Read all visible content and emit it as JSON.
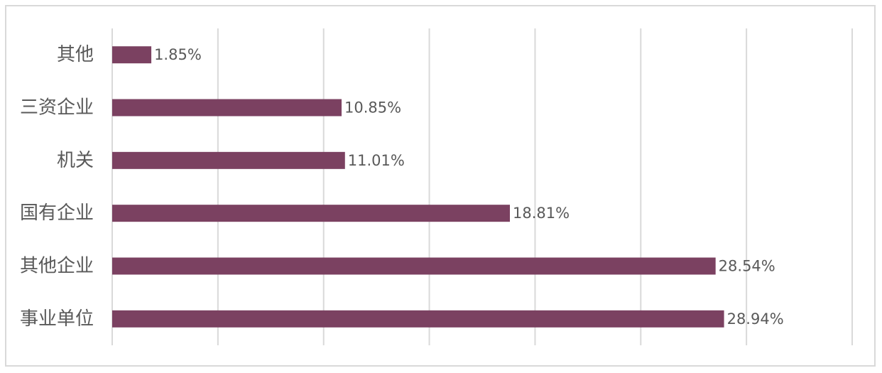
{
  "chart_data": {
    "type": "bar",
    "orientation": "horizontal",
    "categories": [
      "其他",
      "三资企业",
      "机关",
      "国有企业",
      "其他企业",
      "事业单位"
    ],
    "values": [
      1.85,
      10.85,
      11.01,
      18.81,
      28.54,
      28.94
    ],
    "value_labels": [
      "1.85%",
      "10.85%",
      "11.01%",
      "18.81%",
      "28.54%",
      "28.94%"
    ],
    "unit": "%",
    "xlim": [
      0,
      35
    ],
    "x_gridlines": [
      0,
      5,
      10,
      15,
      20,
      25,
      30,
      35
    ],
    "grid": true,
    "legend": "none",
    "title": "",
    "xlabel": "",
    "ylabel": "",
    "colors": {
      "bar": "#7b4161",
      "grid": "#d9d9d9",
      "text": "#595959",
      "border": "#d9d9d9"
    }
  }
}
